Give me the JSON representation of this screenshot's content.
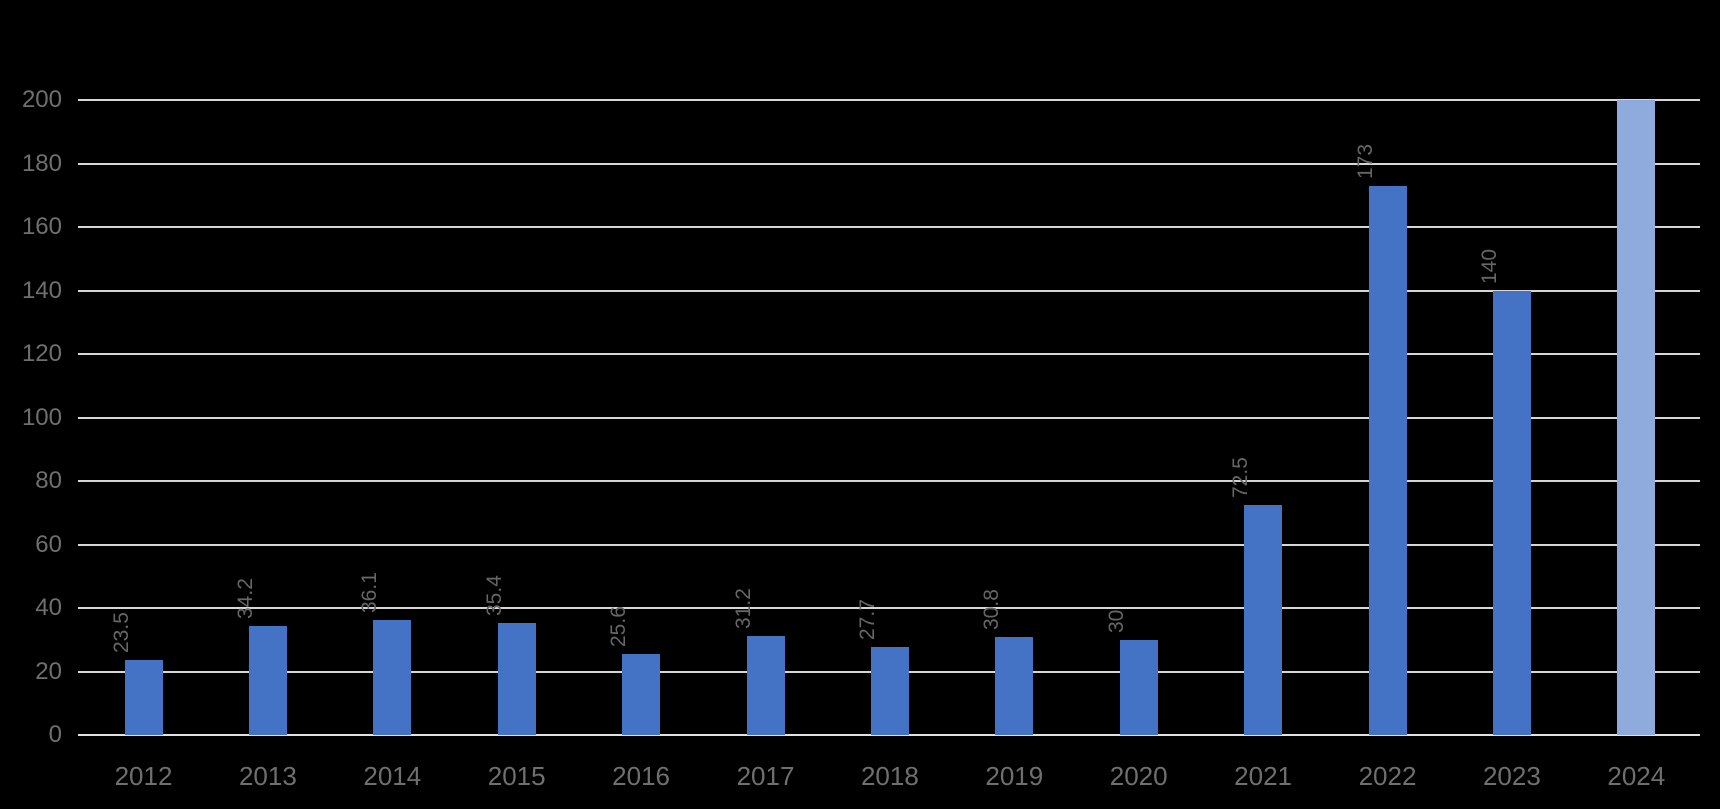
{
  "chart_data": {
    "type": "bar",
    "categories": [
      "2012",
      "2013",
      "2014",
      "2015",
      "2016",
      "2017",
      "2018",
      "2019",
      "2020",
      "2021",
      "2022",
      "2023",
      "2024"
    ],
    "values": [
      23.5,
      34.2,
      36.1,
      35.4,
      25.6,
      31.2,
      27.7,
      30.8,
      30,
      72.5,
      173,
      140,
      200
    ],
    "data_labels": [
      "23.5",
      "34.2",
      "36.1",
      "35.4",
      "25.6",
      "31.2",
      "27.7",
      "30.8",
      "30",
      "72.5",
      "173",
      "140",
      ""
    ],
    "title": "",
    "xlabel": "",
    "ylabel": "",
    "ylim": [
      0,
      200
    ],
    "yticks": [
      0,
      20,
      40,
      60,
      80,
      100,
      120,
      140,
      160,
      180,
      200
    ],
    "grid": true,
    "legend": false,
    "data_label_rotation_deg": -90,
    "highlight_last_bar": true
  },
  "colors": {
    "background": "#000000",
    "bar": "#4472C4",
    "bar_highlight": "#8FAADC",
    "gridline": "#D6D6D6",
    "axis_line": "#E2E2E2",
    "axis_label_text": "#6F6F6F",
    "data_label_text": "#666666"
  }
}
